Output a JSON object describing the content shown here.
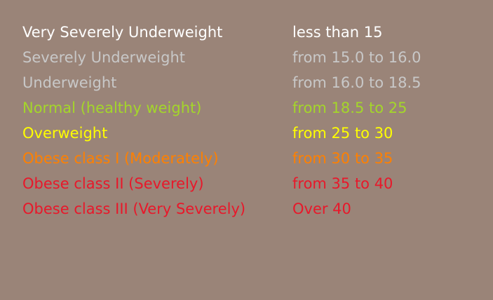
{
  "rows": [
    {
      "category": "Very Severely Underweight",
      "range": "less than 15",
      "color": "#ffffff"
    },
    {
      "category": "Severely Underweight",
      "range": "from 15.0 to 16.0",
      "color": "#c8c8c8"
    },
    {
      "category": "Underweight",
      "range": "from 16.0 to 18.5",
      "color": "#c8c8c8"
    },
    {
      "category": "Normal (healthy weight)",
      "range": "from 18.5 to 25",
      "color": "#a4d62a"
    },
    {
      "category": "Overweight",
      "range": "from 25 to 30",
      "color": "#ffff00"
    },
    {
      "category": "Obese class I (Moderately)",
      "range": "from 30 to 35",
      "color": "#ff8000"
    },
    {
      "category": "Obese class II (Severely)",
      "range": "from 35 to 40",
      "color": "#e8182a"
    },
    {
      "category": "Obese class III (Very Severely)",
      "range": "Over 40",
      "color": "#e8182a"
    }
  ]
}
